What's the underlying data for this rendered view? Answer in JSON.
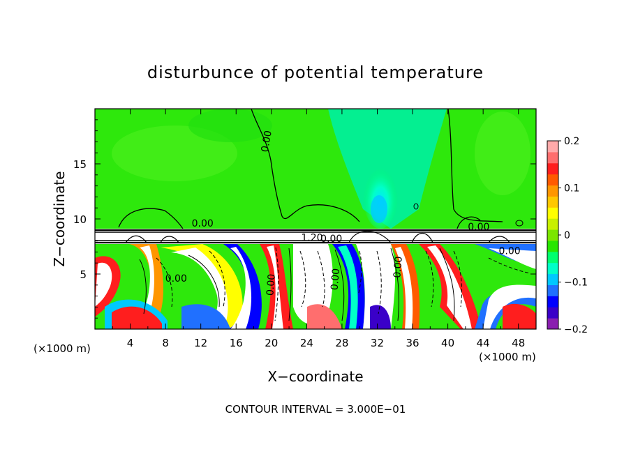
{
  "chart_data": {
    "type": "heatmap",
    "title": "disturbunce of potential temperature",
    "xlabel": "X−coordinate",
    "ylabel": "Z−coordinate",
    "x_unit_left": "(×1000 m)",
    "x_unit_right": "(×1000 m)",
    "xlim": [
      0,
      50
    ],
    "ylim": [
      0,
      20
    ],
    "x_ticks": [
      4,
      8,
      12,
      16,
      20,
      24,
      28,
      32,
      36,
      40,
      44,
      48
    ],
    "x_tick_labels": [
      "4",
      "8",
      "12",
      "16",
      "20",
      "24",
      "28",
      "32",
      "36",
      "40",
      "44",
      "48"
    ],
    "y_ticks": [
      5,
      10,
      15
    ],
    "y_tick_labels": [
      "5",
      "10",
      "15"
    ],
    "footnote": "CONTOUR INTERVAL = 3.000E−01",
    "colorbar": {
      "min": -0.2,
      "max": 0.2,
      "tick_values": [
        0.2,
        0.1,
        0,
        -0.1,
        -0.2
      ],
      "tick_labels": [
        "0.2",
        "0.1",
        "0",
        "−0.1",
        "−0.2"
      ],
      "colors": [
        "#8a1fb0",
        "#3a00c8",
        "#0000ff",
        "#2070ff",
        "#00c8ff",
        "#00ffc8",
        "#00ff6e",
        "#28e600",
        "#7be600",
        "#c8f000",
        "#ffff00",
        "#ffc800",
        "#ff9600",
        "#ff5a00",
        "#ff1e1e",
        "#ff6e6e",
        "#ffaaaa"
      ]
    },
    "contour_labels": [
      {
        "text": "0.00",
        "x": 19.8,
        "z": 17.0,
        "angle": -80
      },
      {
        "text": "0.00",
        "x": 12.2,
        "z": 9.3,
        "angle": 0
      },
      {
        "text": "1.20",
        "x": 24.6,
        "z": 8.0,
        "angle": 0
      },
      {
        "text": "0.00",
        "x": 26.8,
        "z": 7.9,
        "angle": 0
      },
      {
        "text": "0.00",
        "x": 43.5,
        "z": 9.0,
        "angle": 0
      },
      {
        "text": "0.00",
        "x": 47.0,
        "z": 6.8,
        "angle": 0
      },
      {
        "text": "0.00",
        "x": 9.2,
        "z": 4.3,
        "angle": 0
      },
      {
        "text": "0.00",
        "x": 20.3,
        "z": 4.0,
        "angle": -85
      },
      {
        "text": "0.00",
        "x": 27.6,
        "z": 4.5,
        "angle": -85
      },
      {
        "text": "0.00",
        "x": 34.7,
        "z": 5.6,
        "angle": -85
      }
    ],
    "grid": false,
    "legend": "colorbar-right"
  }
}
